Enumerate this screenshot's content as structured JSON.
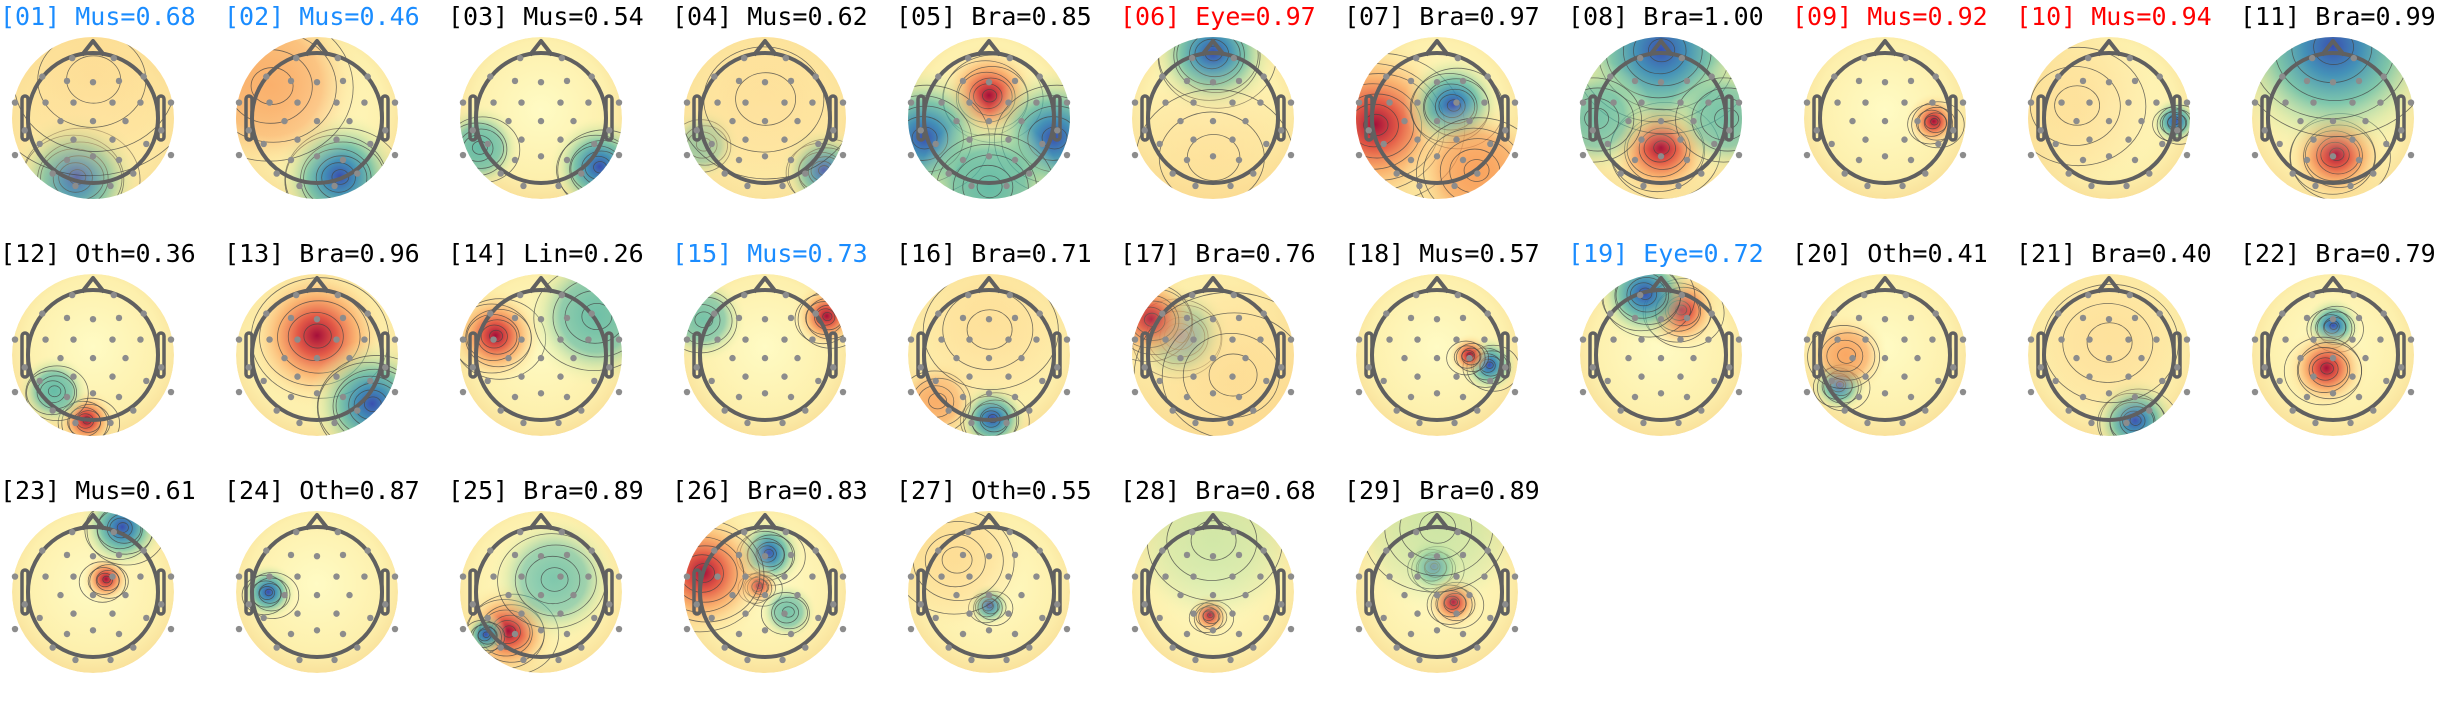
{
  "colors": {
    "label_normal": "#000000",
    "label_blue": "#1a8cff",
    "label_red": "#ff0000",
    "positive": "#b2182b",
    "negative": "#3b4cc0",
    "neutral": "#fdf6b9"
  },
  "chart_data": {
    "type": "heatmap",
    "subtype": "scalp topographic maps (11 per row)",
    "colormap": "spectral (red positive, yellow neutral, blue negative)",
    "components": [
      {
        "label": "[01] Mus=0.68",
        "label_color": "blue",
        "extrema": [
          [
            -0.25,
            0.9,
            -1,
            0.45,
            1
          ],
          [
            0,
            -0.6,
            1,
            0.9,
            0.3
          ]
        ]
      },
      {
        "label": "[02] Mus=0.46",
        "label_color": "blue",
        "extrema": [
          [
            0.35,
            0.9,
            -1,
            0.45,
            1
          ],
          [
            -0.7,
            -0.5,
            1,
            0.7,
            0.35
          ]
        ]
      },
      {
        "label": "[03] Mus=0.54",
        "label_color": "black",
        "extrema": [
          [
            0.9,
            0.75,
            -1,
            0.35,
            1
          ],
          [
            -0.95,
            0.45,
            -1,
            0.3,
            0.5
          ]
        ]
      },
      {
        "label": "[04] Mus=0.62",
        "label_color": "black",
        "extrema": [
          [
            0.9,
            0.8,
            -1,
            0.3,
            0.9
          ],
          [
            -0.95,
            0.4,
            -1,
            0.25,
            0.35
          ],
          [
            0,
            -0.3,
            1,
            0.8,
            0.25
          ]
        ]
      },
      {
        "label": "[05] Bra=0.85",
        "label_color": "black",
        "extrema": [
          [
            0,
            -0.35,
            1,
            0.38,
            1
          ],
          [
            -1,
            0.3,
            -1,
            0.5,
            0.6
          ],
          [
            1,
            0.3,
            -1,
            0.5,
            0.6
          ],
          [
            0,
            1.05,
            -1,
            0.5,
            0.5
          ]
        ]
      },
      {
        "label": "[06] Eye=0.97",
        "label_color": "red",
        "extrema": [
          [
            0,
            -1,
            -1,
            0.45,
            1
          ],
          [
            0,
            0.6,
            1,
            0.7,
            0.15
          ]
        ]
      },
      {
        "label": "[07] Bra=0.97",
        "label_color": "black",
        "extrema": [
          [
            -0.95,
            0.1,
            1,
            0.65,
            1
          ],
          [
            0.25,
            -0.2,
            -1,
            0.35,
            1
          ],
          [
            0.6,
            0.8,
            1,
            0.5,
            0.5
          ]
        ]
      },
      {
        "label": "[08] Bra=1.00",
        "label_color": "black",
        "extrema": [
          [
            0,
            0.45,
            1,
            0.42,
            1
          ],
          [
            0,
            -1.05,
            -1,
            0.7,
            0.9
          ],
          [
            -1,
            0,
            -1,
            0.4,
            0.4
          ],
          [
            1,
            0,
            -1,
            0.4,
            0.4
          ]
        ]
      },
      {
        "label": "[09] Mus=0.92",
        "label_color": "red",
        "extrema": [
          [
            0.75,
            0.05,
            1,
            0.2,
            1
          ]
        ]
      },
      {
        "label": "[10] Mus=0.94",
        "label_color": "red",
        "extrema": [
          [
            1.02,
            0.05,
            -1,
            0.17,
            1
          ],
          [
            -0.5,
            -0.2,
            1,
            0.6,
            0.2
          ]
        ]
      },
      {
        "label": "[11] Bra=0.99",
        "label_color": "black",
        "extrema": [
          [
            0.05,
            0.55,
            1,
            0.38,
            1
          ],
          [
            0,
            -1.1,
            -1,
            0.8,
            0.65
          ]
        ]
      },
      {
        "label": "[12] Oth=0.36",
        "label_color": "black",
        "extrema": [
          [
            -0.1,
            1,
            1,
            0.22,
            1
          ],
          [
            -0.6,
            0.55,
            -1,
            0.25,
            0.5
          ]
        ]
      },
      {
        "label": "[13] Bra=0.96",
        "label_color": "black",
        "extrema": [
          [
            0,
            -0.3,
            1,
            0.55,
            0.65
          ],
          [
            0.85,
            0.75,
            -1,
            0.45,
            1
          ]
        ]
      },
      {
        "label": "[14] Lin=0.26",
        "label_color": "black",
        "extrema": [
          [
            -0.7,
            -0.3,
            1,
            0.35,
            1
          ],
          [
            0.85,
            -0.6,
            -1,
            0.5,
            0.45
          ]
        ]
      },
      {
        "label": "[15] Mus=0.73",
        "label_color": "blue",
        "extrema": [
          [
            0.95,
            -0.6,
            1,
            0.25,
            1
          ],
          [
            -0.95,
            -0.55,
            -1,
            0.3,
            0.4
          ]
        ]
      },
      {
        "label": "[16] Bra=0.71",
        "label_color": "black",
        "extrema": [
          [
            0.05,
            0.97,
            -1,
            0.25,
            1
          ],
          [
            -0.8,
            0.7,
            1,
            0.3,
            0.35
          ],
          [
            0,
            -0.4,
            1,
            0.6,
            0.25
          ]
        ]
      },
      {
        "label": "[17] Bra=0.76",
        "label_color": "black",
        "extrema": [
          [
            -0.5,
            -0.3,
            -1,
            0.35,
            0.7
          ],
          [
            -0.95,
            -0.55,
            1,
            0.35,
            0.7
          ],
          [
            0.3,
            0.3,
            1,
            0.8,
            0.3
          ]
        ]
      },
      {
        "label": "[18] Mus=0.57",
        "label_color": "black",
        "extrema": [
          [
            0.8,
            0.15,
            -1,
            0.2,
            1
          ],
          [
            0.5,
            0,
            1,
            0.15,
            0.8
          ]
        ]
      },
      {
        "label": "[19] Eye=0.72",
        "label_color": "blue",
        "extrema": [
          [
            0.3,
            -0.7,
            1,
            0.3,
            1
          ],
          [
            -0.25,
            -0.95,
            -1,
            0.35,
            0.9
          ]
        ]
      },
      {
        "label": "[20] Oth=0.41",
        "label_color": "black",
        "extrema": [
          [
            -0.7,
            0.45,
            -1,
            0.2,
            1
          ],
          [
            -0.6,
            0,
            1,
            0.3,
            0.45
          ]
        ]
      },
      {
        "label": "[21] Bra=0.40",
        "label_color": "black",
        "extrema": [
          [
            0.4,
            1,
            -1,
            0.3,
            1
          ],
          [
            0,
            -0.2,
            1,
            0.6,
            0.25
          ]
        ]
      },
      {
        "label": "[22] Bra=0.79",
        "label_color": "black",
        "extrema": [
          [
            0,
            -0.45,
            -1,
            0.2,
            1
          ],
          [
            -0.1,
            0.2,
            1,
            0.3,
            0.8
          ]
        ]
      },
      {
        "label": "[23] Mus=0.61",
        "label_color": "black",
        "extrema": [
          [
            0.2,
            -0.2,
            1,
            0.18,
            0.8
          ],
          [
            0.45,
            -1,
            -1,
            0.3,
            1
          ]
        ]
      },
      {
        "label": "[24] Oth=0.87",
        "label_color": "black",
        "extrema": [
          [
            -0.75,
            0,
            -1,
            0.2,
            1
          ]
        ]
      },
      {
        "label": "[25] Bra=0.89",
        "label_color": "black",
        "extrema": [
          [
            -0.5,
            0.6,
            1,
            0.35,
            1
          ],
          [
            -0.85,
            0.65,
            -1,
            0.15,
            0.8
          ],
          [
            0.2,
            -0.2,
            -1,
            0.45,
            0.35
          ]
        ]
      },
      {
        "label": "[26] Bra=0.83",
        "label_color": "black",
        "extrema": [
          [
            0.05,
            -0.6,
            -1,
            0.25,
            1
          ],
          [
            -0.1,
            -0.1,
            1,
            0.15,
            1
          ],
          [
            -0.95,
            -0.3,
            1,
            0.5,
            0.7
          ],
          [
            0.35,
            0.3,
            -1,
            0.2,
            0.4
          ]
        ]
      },
      {
        "label": "[27] Oth=0.55",
        "label_color": "black",
        "extrema": [
          [
            0,
            0.2,
            -1,
            0.15,
            1
          ],
          [
            -0.5,
            -0.5,
            1,
            0.5,
            0.3
          ]
        ]
      },
      {
        "label": "[28] Bra=0.68",
        "label_color": "black",
        "extrema": [
          [
            -0.05,
            0.35,
            1,
            0.15,
            1
          ],
          [
            0,
            -0.8,
            -1,
            0.6,
            0.25
          ]
        ]
      },
      {
        "label": "[29] Bra=0.89",
        "label_color": "black",
        "extrema": [
          [
            -0.05,
            -0.4,
            -1,
            0.2,
            1
          ],
          [
            0.25,
            0.15,
            1,
            0.2,
            1
          ],
          [
            0,
            -1,
            -1,
            0.6,
            0.3
          ]
        ]
      }
    ]
  }
}
